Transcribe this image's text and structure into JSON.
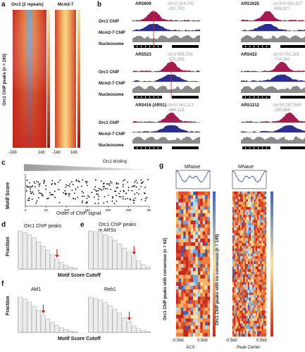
{
  "panels": {
    "a": {
      "label": "a",
      "col1_title": "Orc1 (2 repeats)",
      "col2_title": "Mcm2-7",
      "ylabel": "Orc1 ChIP peaks (n = 293)",
      "xticks_col1": [
        "-1kb",
        "1kb"
      ],
      "xticks_col2": [
        "-1kb",
        "1kb"
      ]
    },
    "b": {
      "label": "b",
      "track_labels": [
        "Orc1 ChIP",
        "Mcm2-7 ChIP",
        "Nucleosome"
      ],
      "loci": [
        {
          "name": "ARS609",
          "coords": "chrVI:254,700\n-257,750"
        },
        {
          "name": "ARS1625",
          "coords": "chrXVI:693,927\n-696,927"
        },
        {
          "name": "ARS523",
          "coords": "chrV:568,208\n-571,208"
        },
        {
          "name": "ARS422",
          "coords": "chrIV:701,361\n-704,361"
        },
        {
          "name": "ARS416 (ARS1)",
          "coords": "chrIV:461,113\n-464,113"
        },
        {
          "name": "ARS1212",
          "coords": "chrXII:287,988\n-290,988"
        }
      ]
    },
    "c": {
      "label": "c",
      "top_label": "Orc1 binding",
      "ylabel": "Motif Score",
      "xlabel": "Order of ChIP signal",
      "xticks": [
        "0",
        "50",
        "100",
        "150",
        "200",
        "250",
        "300"
      ]
    },
    "d": {
      "label": "d",
      "title": "Orc1 ChIP peaks",
      "ylabel": "Fraction"
    },
    "e": {
      "label": "e",
      "title": "Orc1 ChIP peaks\nin ARSs"
    },
    "de_xlabel": "Motif Score Cutoff",
    "f": {
      "label": "f",
      "title_left": "Abf1",
      "title_right": "Reb1",
      "ylabel": "Fraction",
      "xlabel": "Motif Score Cutoff"
    },
    "g": {
      "label": "g",
      "left_title": "MNase",
      "right_title": "MNase",
      "left_ylabel": "Orc1 ChIP peaks with consensus (n = 62)",
      "right_ylabel": "Orc1 ChIP peaks with no consensus (n = 145)",
      "left_xticks": [
        "-0.5kb",
        "0.5kb"
      ],
      "right_xticks": [
        "-0.5kb",
        "0.5kb"
      ],
      "left_xlabel": "ACS",
      "right_xlabel": "Peak Center"
    }
  },
  "colors": {
    "orc1": "#a31b4f",
    "mcm": "#2b2e8f",
    "nucleosome": "#8a8a8a",
    "arrow": "#e0221c",
    "heat_hi": "#f6e3a6",
    "heat_lo": "#c4281c"
  }
}
